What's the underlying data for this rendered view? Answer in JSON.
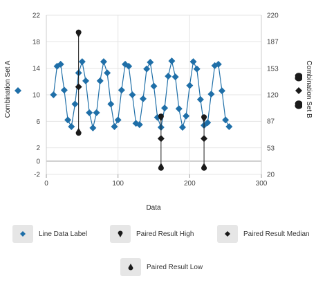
{
  "chart_data": {
    "type": "line",
    "xlabel": "Data",
    "ylabel_left": "Combination Set A",
    "ylabel_right": "Combination Set B",
    "xlim": [
      0,
      300
    ],
    "ylim_left": [
      -2,
      22
    ],
    "ylim_right": [
      20,
      220
    ],
    "x_ticks": [
      0,
      100,
      200,
      300
    ],
    "y_ticks_left": [
      -2,
      0,
      2,
      6,
      10,
      14,
      18,
      22
    ],
    "y_ticks_right": [
      20,
      53,
      87,
      120,
      153,
      187,
      220
    ],
    "grid": true,
    "colors": {
      "line": "#1f6fa8",
      "marker": "#1f6fa8",
      "paired": "#1a1a1a",
      "baseline": "#bbbbbb"
    },
    "series": [
      {
        "name": "Line Data Label",
        "x": [
          10,
          15,
          20,
          25,
          30,
          35,
          40,
          45,
          50,
          55,
          60,
          65,
          70,
          75,
          80,
          85,
          90,
          95,
          100,
          105,
          110,
          115,
          120,
          125,
          130,
          135,
          140,
          145,
          150,
          155,
          160,
          165,
          170,
          175,
          180,
          185,
          190,
          195,
          200,
          205,
          210,
          215,
          220,
          225,
          230,
          235,
          240,
          245,
          250,
          255
        ],
        "y": [
          10,
          14.3,
          14.6,
          10.7,
          6.2,
          5.2,
          8.6,
          13.3,
          15,
          12.1,
          7.3,
          5,
          7.3,
          12.1,
          15,
          13.3,
          8.6,
          5.2,
          6.2,
          10.7,
          14.6,
          14.3,
          10,
          5.7,
          5.5,
          9.4,
          13.9,
          14.9,
          11.3,
          6.6,
          5.1,
          8,
          12.8,
          15.1,
          12.7,
          7.9,
          5.1,
          6.8,
          11.4,
          15,
          13.9,
          9.3,
          5.4,
          5.8,
          10.1,
          14.4,
          14.6,
          10.6,
          6.2,
          5.2
        ]
      },
      {
        "name": "Paired Result High",
        "x": [
          45,
          160,
          220
        ],
        "y": [
          196.5,
          91,
          90
        ]
      },
      {
        "name": "Paired Result Median",
        "x": [
          45,
          160,
          220
        ],
        "y": [
          130,
          65,
          65
        ]
      },
      {
        "name": "Paired Result Low",
        "x": [
          45,
          160,
          220
        ],
        "y": [
          74,
          30,
          30
        ]
      }
    ],
    "legend": {
      "placement": "bottom",
      "items": [
        {
          "label": "Line Data Label",
          "marker": "diamond"
        },
        {
          "label": "Paired Result High",
          "marker": "drop-down"
        },
        {
          "label": "Paired Result Median",
          "marker": "diamond"
        },
        {
          "label": "Paired Result Low",
          "marker": "drop-up"
        }
      ]
    }
  }
}
